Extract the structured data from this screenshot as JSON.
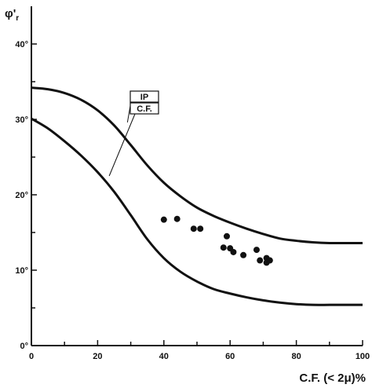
{
  "chart_data": {
    "type": "scatter",
    "title": "",
    "xlabel": "C.F. (< 2μ)%",
    "ylabel_main": "φ'",
    "ylabel_sub": "r",
    "xlim": [
      0,
      100
    ],
    "ylim": [
      0,
      45
    ],
    "xticks": [
      0,
      20,
      40,
      60,
      80,
      100
    ],
    "xtick_labels": [
      "0",
      "20",
      "40",
      "60",
      "80",
      "100"
    ],
    "yticks": [
      0,
      10,
      20,
      30,
      40
    ],
    "ytick_labels": [
      "0°",
      "10°",
      "20°",
      "30°",
      "40°"
    ],
    "grid": false,
    "points": [
      {
        "x": 40,
        "y": 16.7
      },
      {
        "x": 44,
        "y": 16.8
      },
      {
        "x": 49,
        "y": 15.5
      },
      {
        "x": 51,
        "y": 15.5
      },
      {
        "x": 59,
        "y": 14.5
      },
      {
        "x": 58,
        "y": 13.0
      },
      {
        "x": 60,
        "y": 12.9
      },
      {
        "x": 61,
        "y": 12.4
      },
      {
        "x": 64,
        "y": 12.0
      },
      {
        "x": 68,
        "y": 12.7
      },
      {
        "x": 69,
        "y": 11.3
      },
      {
        "x": 71,
        "y": 11.6
      },
      {
        "x": 71,
        "y": 11.0
      },
      {
        "x": 72,
        "y": 11.3
      }
    ],
    "curves": [
      {
        "name": "IP",
        "x": [
          0,
          5,
          10,
          15,
          20,
          25,
          30,
          35,
          40,
          45,
          50,
          55,
          60,
          65,
          70,
          75,
          80,
          85,
          90,
          95,
          100
        ],
        "y": [
          34.2,
          34.0,
          33.5,
          32.6,
          31.2,
          29.2,
          26.6,
          23.9,
          21.6,
          19.8,
          18.3,
          17.2,
          16.3,
          15.5,
          14.8,
          14.2,
          13.9,
          13.7,
          13.6,
          13.6,
          13.6
        ]
      },
      {
        "name": "C.F.",
        "x": [
          0,
          5,
          10,
          15,
          20,
          25,
          30,
          35,
          40,
          45,
          50,
          55,
          60,
          65,
          70,
          75,
          80,
          85,
          90,
          95,
          100
        ],
        "y": [
          30.1,
          28.8,
          27.1,
          25.2,
          23.0,
          20.4,
          17.3,
          14.1,
          11.6,
          9.8,
          8.5,
          7.5,
          6.9,
          6.4,
          6.0,
          5.7,
          5.5,
          5.4,
          5.4,
          5.4,
          5.4
        ]
      }
    ],
    "legend_boxes": [
      "IP",
      "C.F."
    ]
  }
}
